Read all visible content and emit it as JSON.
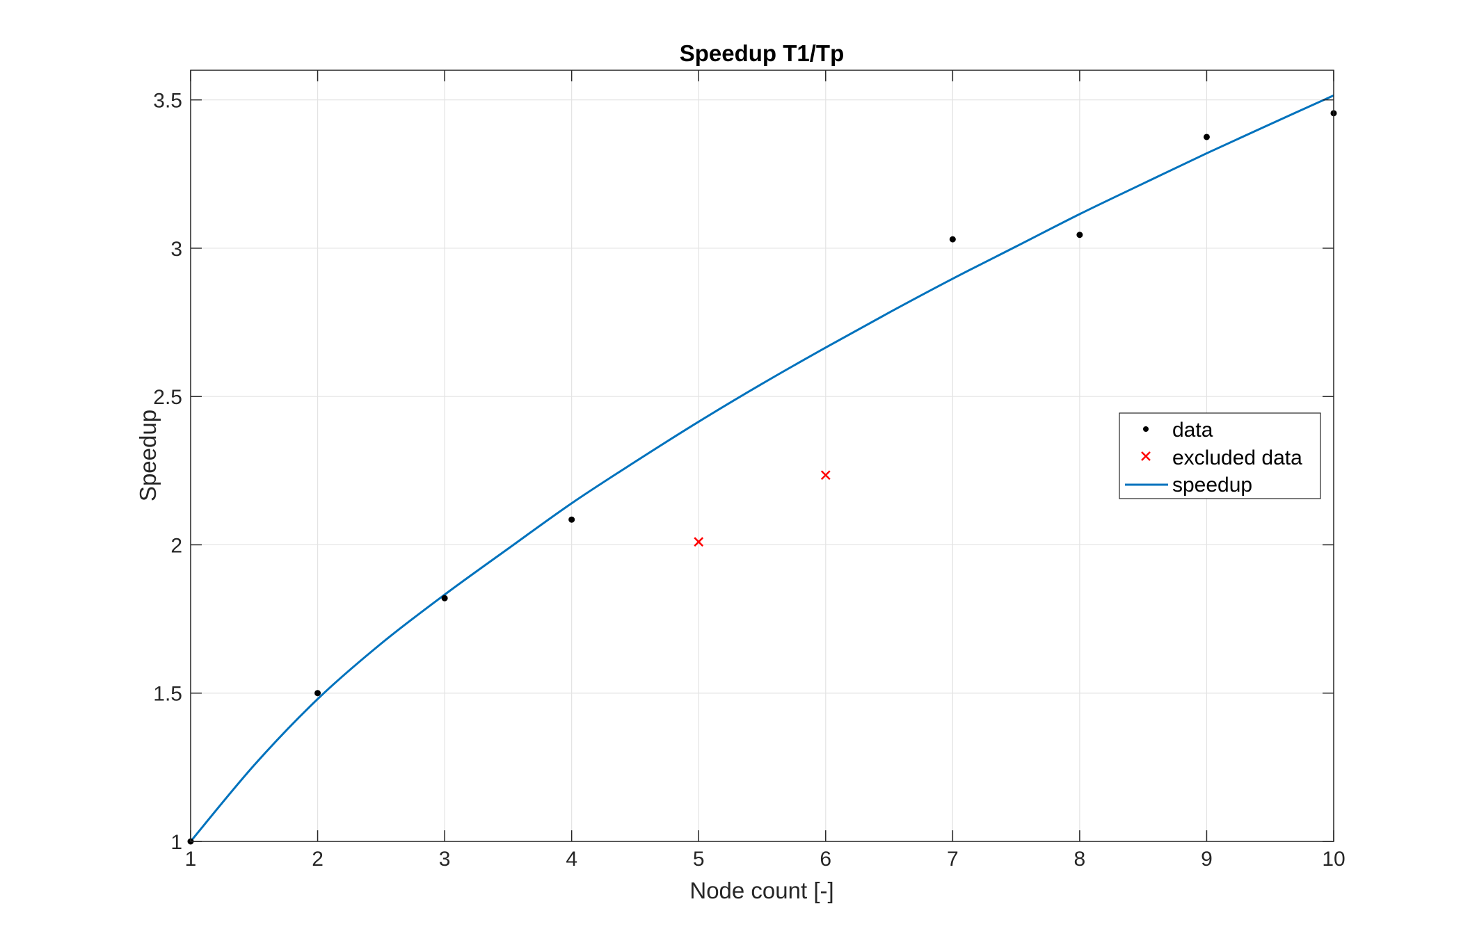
{
  "chart_data": {
    "type": "scatter",
    "title": "Speedup T1/Tp",
    "xlabel": "Node count [-]",
    "ylabel": "Speedup",
    "xlim": [
      1,
      10
    ],
    "ylim": [
      1,
      3.6
    ],
    "xticks": [
      1,
      2,
      3,
      4,
      5,
      6,
      7,
      8,
      9,
      10
    ],
    "xtick_labels": [
      "1",
      "2",
      "3",
      "4",
      "5",
      "6",
      "7",
      "8",
      "9",
      "10"
    ],
    "yticks": [
      1,
      1.5,
      2,
      2.5,
      3,
      3.5
    ],
    "ytick_labels": [
      "1",
      "1.5",
      "2",
      "2.5",
      "3",
      "3.5"
    ],
    "grid": true,
    "legend_position": "right",
    "series": [
      {
        "name": "data",
        "kind": "points",
        "color": "#000000",
        "x": [
          1,
          2,
          3,
          4,
          7,
          8,
          9,
          10
        ],
        "y": [
          1.0,
          1.5,
          1.82,
          2.085,
          3.03,
          3.045,
          3.375,
          3.455
        ]
      },
      {
        "name": "excluded data",
        "kind": "crosses",
        "color": "#ff0000",
        "x": [
          5,
          6
        ],
        "y": [
          2.01,
          2.235
        ]
      },
      {
        "name": "speedup",
        "kind": "line",
        "color": "#0072bd",
        "x": [
          1,
          1.5,
          2,
          2.5,
          3,
          3.5,
          4,
          4.5,
          5,
          5.5,
          6,
          6.5,
          7,
          7.5,
          8,
          8.5,
          9,
          9.5,
          10
        ],
        "y": [
          1.0,
          1.257,
          1.48,
          1.667,
          1.832,
          1.987,
          2.14,
          2.28,
          2.415,
          2.543,
          2.665,
          2.783,
          2.897,
          3.006,
          3.115,
          3.218,
          3.32,
          3.418,
          3.515
        ]
      }
    ]
  }
}
